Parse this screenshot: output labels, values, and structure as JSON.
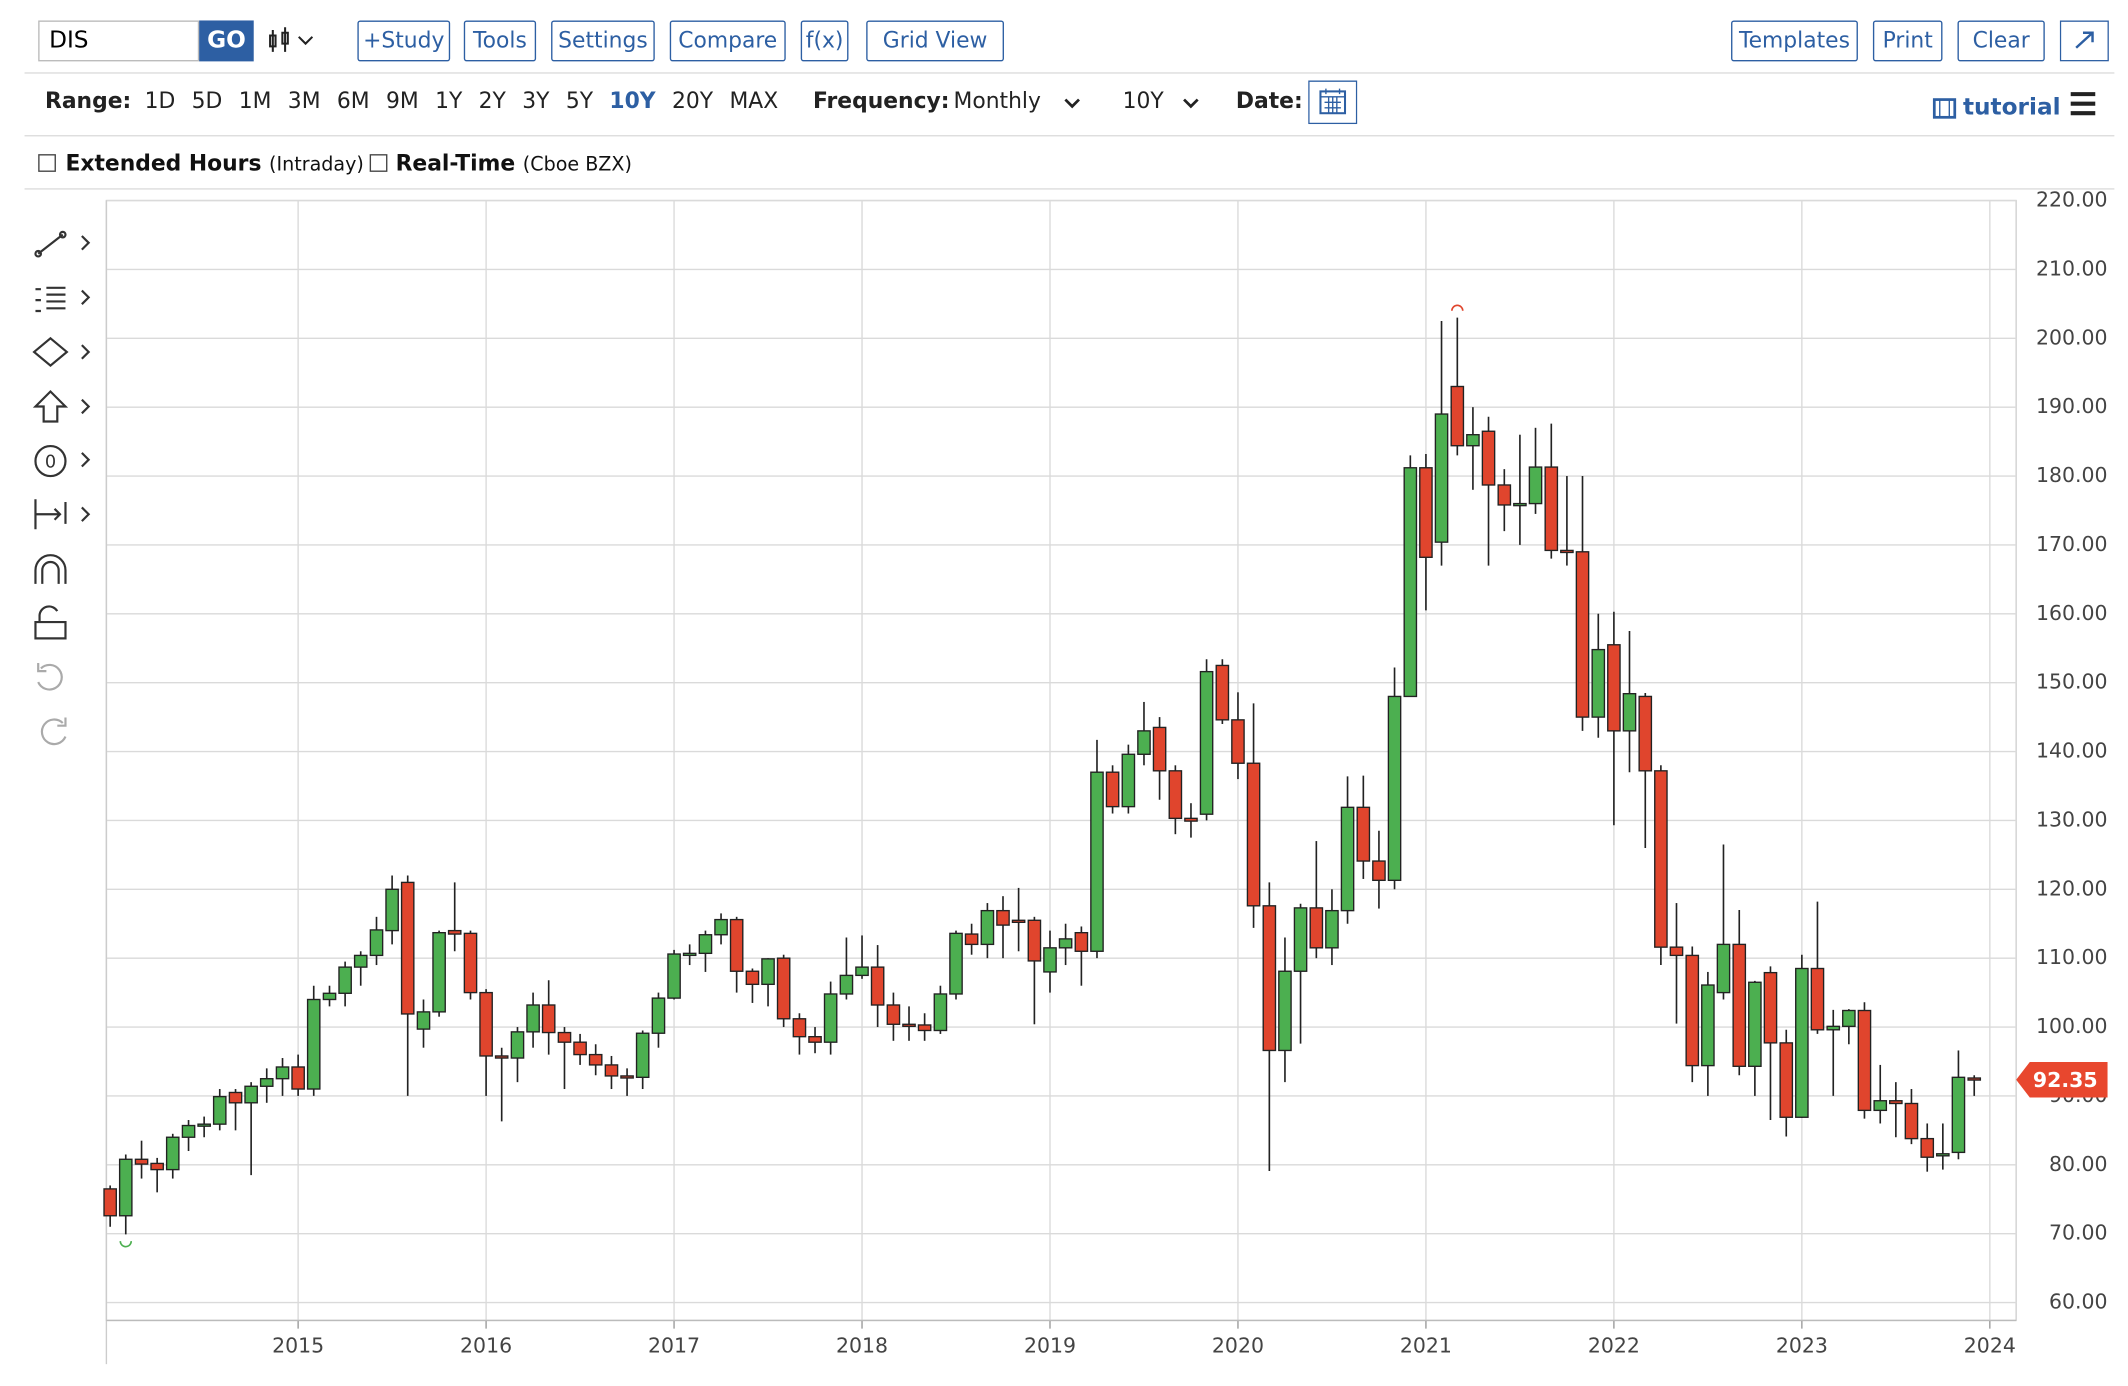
{
  "ui": {
    "symbol": "DIS",
    "go": "GO",
    "buttons": [
      "+Study",
      "Tools",
      "Settings",
      "Compare",
      "f(x)",
      "Grid View"
    ],
    "right_buttons": [
      "Templates",
      "Print",
      "Clear"
    ],
    "range_label": "Range:",
    "ranges": [
      "1D",
      "5D",
      "1M",
      "3M",
      "6M",
      "9M",
      "1Y",
      "2Y",
      "3Y",
      "5Y",
      "10Y",
      "20Y",
      "MAX"
    ],
    "active_range": "10Y",
    "frequency_label": "Frequency:",
    "frequency": "Monthly",
    "period": "10Y",
    "date_label": "Date:",
    "tutorial": "tutorial",
    "extended_hours": "Extended Hours",
    "extended_hours_note": "(Intraday)",
    "real_time": "Real-Time",
    "real_time_note": "(Cboe BZX)"
  },
  "chart_data": {
    "type": "candlestick",
    "up_color": "#4caf50",
    "down_color": "#e0452d",
    "grid": true,
    "x": [
      2014,
      2014.083,
      2014.167,
      2014.25,
      2014.333,
      2014.417,
      2014.5,
      2014.583,
      2014.667,
      2014.75,
      2014.833,
      2014.917,
      2015,
      2015.083,
      2015.167,
      2015.25,
      2015.333,
      2015.417,
      2015.5,
      2015.583,
      2015.667,
      2015.75,
      2015.833,
      2015.917,
      2016,
      2016.083,
      2016.167,
      2016.25,
      2016.333,
      2016.417,
      2016.5,
      2016.583,
      2016.667,
      2016.75,
      2016.833,
      2016.917,
      2017,
      2017.083,
      2017.167,
      2017.25,
      2017.333,
      2017.417,
      2017.5,
      2017.583,
      2017.667,
      2017.75,
      2017.833,
      2017.917,
      2018,
      2018.083,
      2018.167,
      2018.25,
      2018.333,
      2018.417,
      2018.5,
      2018.583,
      2018.667,
      2018.75,
      2018.833,
      2018.917,
      2019,
      2019.083,
      2019.167,
      2019.25,
      2019.333,
      2019.417,
      2019.5,
      2019.583,
      2019.667,
      2019.75,
      2019.833,
      2019.917,
      2020,
      2020.083,
      2020.167,
      2020.25,
      2020.333,
      2020.417,
      2020.5,
      2020.583,
      2020.667,
      2020.75,
      2020.833,
      2020.917,
      2021,
      2021.083,
      2021.167,
      2021.25,
      2021.333,
      2021.417,
      2021.5,
      2021.583,
      2021.667,
      2021.75,
      2021.833,
      2021.917,
      2022,
      2022.083,
      2022.167,
      2022.25,
      2022.333,
      2022.417,
      2022.5,
      2022.583,
      2022.667,
      2022.75,
      2022.833,
      2022.917,
      2023,
      2023.083,
      2023.167,
      2023.25,
      2023.333,
      2023.417,
      2023.5,
      2023.583,
      2023.667,
      2023.75,
      2023.833,
      2023.917
    ],
    "open": [
      76.5,
      72.6,
      80.8,
      80.2,
      79.3,
      84,
      85.7,
      85.9,
      90.5,
      89,
      91.4,
      92.5,
      94.2,
      91,
      104,
      104.9,
      108.7,
      110.4,
      114,
      121,
      99.7,
      102.2,
      114,
      113.6,
      105,
      95.8,
      95.5,
      99.3,
      103.2,
      99.2,
      97.8,
      96,
      94.5,
      92.9,
      92.7,
      99.1,
      104.2,
      110.6,
      110.7,
      113.4,
      115.6,
      108.1,
      106.2,
      110,
      101.2,
      98.6,
      97.8,
      104.8,
      107.5,
      108.7,
      103.2,
      100.4,
      100.3,
      99.5,
      104.8,
      113.5,
      112,
      116.9,
      115.5,
      115.5,
      108,
      111.5,
      113.7,
      111,
      137,
      132,
      139.6,
      143.5,
      137.2,
      130.3,
      130.9,
      152.5,
      144.6,
      138.3,
      117.6,
      96.6,
      108.1,
      117.3,
      111.5,
      116.9,
      131.9,
      124.1,
      121.3,
      148,
      181.2,
      170.4,
      193,
      184.4,
      186.5,
      178.7,
      175.8,
      176,
      181.3,
      169.2,
      169,
      145,
      155.5,
      143,
      148,
      137.2,
      111.6,
      110.4,
      94.4,
      105,
      112,
      94.3,
      107.9,
      97.7,
      86.9,
      108.5,
      99.6,
      100.1,
      102.4,
      87.9,
      89.3,
      88.9,
      83.8,
      81.5,
      81.8,
      92.6
    ],
    "high": [
      77,
      81.5,
      83.5,
      81,
      84.5,
      86.5,
      87,
      91,
      91,
      92,
      94,
      95.5,
      96,
      106,
      106,
      109.5,
      111,
      116,
      122,
      122,
      104,
      114,
      121,
      114,
      105.5,
      97,
      100,
      105,
      106.8,
      100,
      99,
      97.5,
      95.8,
      94,
      99.5,
      105,
      111.2,
      112,
      114,
      116.5,
      116,
      108.5,
      110,
      110.5,
      102,
      100,
      106.6,
      113,
      113.3,
      111.9,
      105,
      103,
      102,
      106,
      114,
      115,
      118,
      119,
      120.2,
      116,
      114,
      115,
      114.6,
      141.7,
      138,
      141,
      147.2,
      145,
      138,
      132.5,
      153.4,
      153.4,
      148.6,
      147,
      121,
      113,
      117.9,
      127,
      120,
      136.4,
      136.5,
      128.5,
      152.2,
      183,
      183.2,
      202.5,
      203,
      190,
      188.6,
      181,
      186,
      187,
      187.6,
      180,
      180,
      160,
      160.3,
      157.5,
      148.5,
      138,
      118,
      111.7,
      108,
      126.5,
      117,
      106.7,
      108.8,
      99.6,
      110.5,
      118.2,
      102.5,
      102.6,
      103.6,
      94.5,
      92,
      91,
      86,
      86,
      96.6,
      93
    ],
    "low": [
      71,
      69.9,
      78,
      76,
      78,
      82,
      84,
      85,
      85,
      78.5,
      89,
      90,
      90,
      90,
      103,
      103,
      106,
      109,
      112,
      90,
      97,
      101.5,
      111,
      104,
      90,
      86.3,
      92,
      97,
      96,
      91,
      94.5,
      93,
      91,
      90,
      91,
      97,
      104,
      109,
      108,
      112,
      105,
      103.5,
      103,
      100,
      96,
      96.2,
      96,
      104,
      107,
      100,
      98,
      98,
      98,
      99,
      104,
      110.5,
      110,
      110,
      111,
      100.4,
      105,
      109,
      106,
      110,
      131,
      131,
      138,
      133,
      128,
      127.5,
      130,
      144,
      136,
      114.4,
      79.1,
      92,
      97.6,
      110,
      109,
      115,
      121.5,
      117.2,
      120,
      148,
      160.5,
      167,
      183,
      178,
      167,
      172,
      170,
      174.5,
      168,
      167,
      143,
      142,
      129.3,
      137,
      126,
      109,
      100.5,
      92,
      90,
      104,
      93,
      90,
      86.5,
      84.1,
      86.8,
      99,
      90,
      97.5,
      86.7,
      86,
      84,
      83,
      79,
      79.3,
      80.8,
      90
    ],
    "close": [
      72.6,
      80.8,
      80.1,
      79.3,
      84,
      85.7,
      85.9,
      89.9,
      89,
      91.4,
      92.5,
      94.2,
      91,
      104,
      104.9,
      108.7,
      110.4,
      114.1,
      120,
      101.9,
      102.2,
      113.7,
      113.5,
      105,
      95.8,
      95.5,
      99.3,
      103.2,
      99.2,
      97.8,
      96,
      94.5,
      92.9,
      92.7,
      99.1,
      104.2,
      110.6,
      110.7,
      113.4,
      115.6,
      108.1,
      106.2,
      109.9,
      101.2,
      98.6,
      97.8,
      104.8,
      107.5,
      108.7,
      103.2,
      100.4,
      100.3,
      99.5,
      104.8,
      113.6,
      112,
      116.9,
      114.8,
      115.4,
      109.6,
      111.5,
      112.8,
      111,
      137,
      132,
      139.6,
      143,
      137.2,
      130.3,
      129.9,
      151.6,
      144.6,
      138.3,
      117.6,
      96.6,
      108.1,
      117.3,
      111.5,
      116.9,
      131.9,
      124.1,
      121.3,
      148,
      181.2,
      168.2,
      189,
      184.4,
      186,
      178.7,
      175.8,
      176,
      181.3,
      169.2,
      169,
      145,
      154.8,
      143,
      148.4,
      137.2,
      111.6,
      110.4,
      94.4,
      106.1,
      112,
      94.3,
      106.5,
      97.7,
      86.9,
      108.5,
      99.6,
      100.1,
      102.4,
      87.9,
      89.3,
      88.9,
      83.8,
      81.1,
      81.6,
      92.7,
      92.35
    ],
    "xlim": [
      2013.98,
      2024.14
    ],
    "xticks": [
      2015,
      2016,
      2017,
      2018,
      2019,
      2020,
      2021,
      2022,
      2023,
      2024
    ],
    "ylim": [
      57.4,
      220
    ],
    "yticks": [
      {
        "value": 60,
        "label": "60.00"
      },
      {
        "value": 70,
        "label": "70.00"
      },
      {
        "value": 80,
        "label": "80.00"
      },
      {
        "value": 90,
        "label": "90.00"
      },
      {
        "value": 100,
        "label": "100.00"
      },
      {
        "value": 110,
        "label": "110.00"
      },
      {
        "value": 120,
        "label": "120.00"
      },
      {
        "value": 130,
        "label": "130.00"
      },
      {
        "value": 140,
        "label": "140.00"
      },
      {
        "value": 150,
        "label": "150.00"
      },
      {
        "value": 160,
        "label": "160.00"
      },
      {
        "value": 170,
        "label": "170.00"
      },
      {
        "value": 180,
        "label": "180.00"
      },
      {
        "value": 190,
        "label": "190.00"
      },
      {
        "value": 200,
        "label": "200.00"
      },
      {
        "value": 210,
        "label": "210.00"
      },
      {
        "value": 220,
        "label": "220.00"
      }
    ]
  }
}
